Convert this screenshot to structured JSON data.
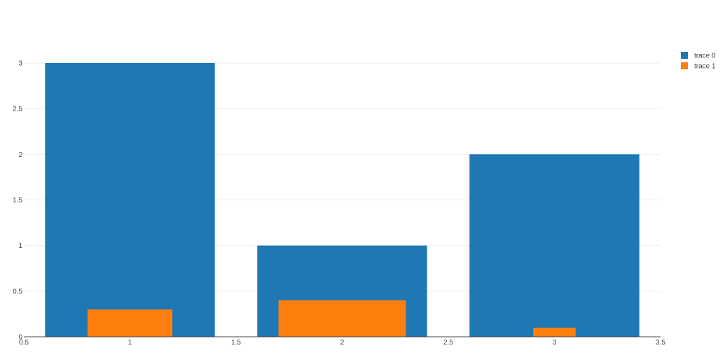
{
  "chart_data": {
    "type": "bar",
    "barmode": "overlay",
    "xlim": [
      0.5,
      3.5
    ],
    "ylim": [
      0,
      3
    ],
    "x_ticks": [
      0.5,
      1,
      1.5,
      2,
      2.5,
      3,
      3.5
    ],
    "x_tick_labels": [
      "0.5",
      "1",
      "1.5",
      "2",
      "2.5",
      "3",
      "3.5"
    ],
    "y_ticks": [
      0,
      0.5,
      1,
      1.5,
      2,
      2.5,
      3
    ],
    "y_tick_labels": [
      "0",
      "0.5",
      "1",
      "1.5",
      "2",
      "2.5",
      "3"
    ],
    "grid": true,
    "legend_position": "top-right",
    "series": [
      {
        "name": "trace 0",
        "color": "#1f77b4",
        "x": [
          1,
          2,
          3
        ],
        "values": [
          3,
          1,
          2
        ],
        "widths": [
          0.8,
          0.8,
          0.8
        ]
      },
      {
        "name": "trace 1",
        "color": "#ff7f0e",
        "x": [
          1,
          2,
          3
        ],
        "values": [
          0.3,
          0.4,
          0.1
        ],
        "widths": [
          0.4,
          0.6,
          0.2
        ]
      }
    ]
  }
}
